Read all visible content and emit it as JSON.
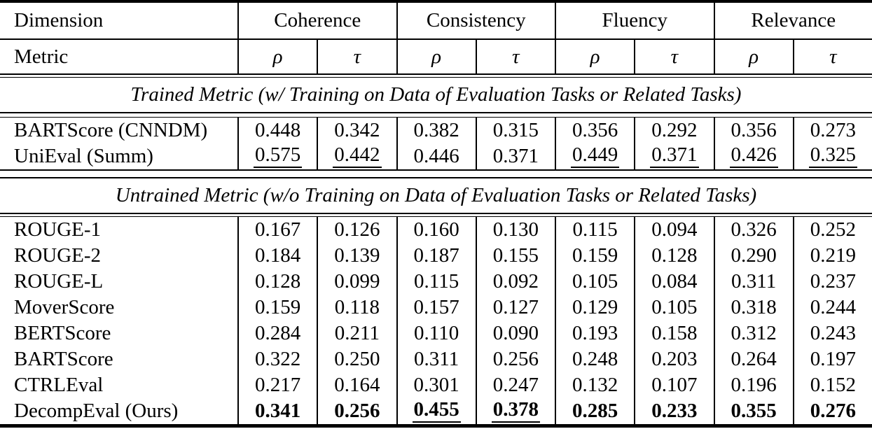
{
  "table": {
    "header": {
      "dimension_label": "Dimension",
      "metric_label": "Metric",
      "groups": [
        {
          "label": "Coherence"
        },
        {
          "label": "Consistency"
        },
        {
          "label": "Fluency"
        },
        {
          "label": "Relevance"
        }
      ],
      "metric_symbols": [
        "ρ",
        "τ",
        "ρ",
        "τ",
        "ρ",
        "τ",
        "ρ",
        "τ"
      ]
    },
    "colors": {
      "text": "#000000",
      "background": "#ffffff",
      "rules": "#000000"
    },
    "sections": [
      {
        "title": "Trained Metric (w/ Training on Data of Evaluation Tasks or Related Tasks)",
        "rows": [
          {
            "name": "BARTScore (CNNDM)",
            "values": [
              "0.448",
              "0.342",
              "0.382",
              "0.315",
              "0.356",
              "0.292",
              "0.356",
              "0.273"
            ],
            "bold": [],
            "underline": []
          },
          {
            "name": "UniEval (Summ)",
            "values": [
              "0.575",
              "0.442",
              "0.446",
              "0.371",
              "0.449",
              "0.371",
              "0.426",
              "0.325"
            ],
            "bold": [],
            "underline": [
              0,
              1,
              4,
              5,
              6,
              7
            ]
          }
        ]
      },
      {
        "title": "Untrained Metric (w/o Training on Data of Evaluation Tasks or Related Tasks)",
        "rows": [
          {
            "name": "ROUGE-1",
            "values": [
              "0.167",
              "0.126",
              "0.160",
              "0.130",
              "0.115",
              "0.094",
              "0.326",
              "0.252"
            ],
            "bold": [],
            "underline": []
          },
          {
            "name": "ROUGE-2",
            "values": [
              "0.184",
              "0.139",
              "0.187",
              "0.155",
              "0.159",
              "0.128",
              "0.290",
              "0.219"
            ],
            "bold": [],
            "underline": []
          },
          {
            "name": "ROUGE-L",
            "values": [
              "0.128",
              "0.099",
              "0.115",
              "0.092",
              "0.105",
              "0.084",
              "0.311",
              "0.237"
            ],
            "bold": [],
            "underline": []
          },
          {
            "name": "MoverScore",
            "values": [
              "0.159",
              "0.118",
              "0.157",
              "0.127",
              "0.129",
              "0.105",
              "0.318",
              "0.244"
            ],
            "bold": [],
            "underline": []
          },
          {
            "name": "BERTScore",
            "values": [
              "0.284",
              "0.211",
              "0.110",
              "0.090",
              "0.193",
              "0.158",
              "0.312",
              "0.243"
            ],
            "bold": [],
            "underline": []
          },
          {
            "name": "BARTScore",
            "values": [
              "0.322",
              "0.250",
              "0.311",
              "0.256",
              "0.248",
              "0.203",
              "0.264",
              "0.197"
            ],
            "bold": [],
            "underline": []
          },
          {
            "name": "CTRLEval",
            "values": [
              "0.217",
              "0.164",
              "0.301",
              "0.247",
              "0.132",
              "0.107",
              "0.196",
              "0.152"
            ],
            "bold": [],
            "underline": []
          },
          {
            "name": "DecompEval (Ours)",
            "values": [
              "0.341",
              "0.256",
              "0.455",
              "0.378",
              "0.285",
              "0.233",
              "0.355",
              "0.276"
            ],
            "bold": [
              0,
              1,
              2,
              3,
              4,
              5,
              6,
              7
            ],
            "underline": [
              2,
              3
            ]
          }
        ]
      }
    ]
  }
}
